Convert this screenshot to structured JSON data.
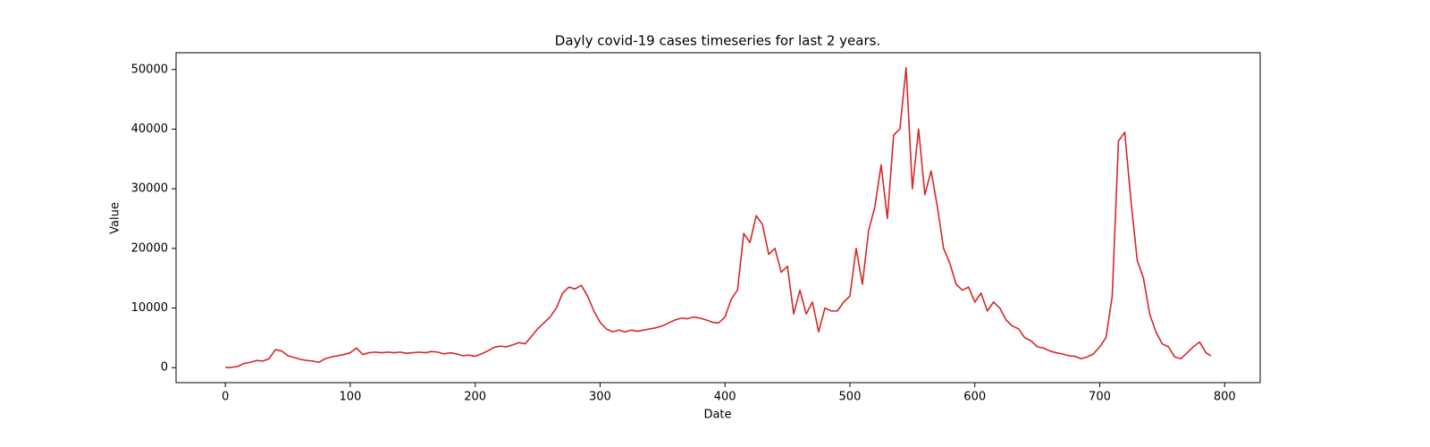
{
  "chart_data": {
    "type": "line",
    "title": "Dayly covid-19 cases timeseries for last 2 years.",
    "x_label": "Date",
    "y_label": "Value",
    "color": "#d62728",
    "x": [
      0,
      5,
      10,
      15,
      20,
      25,
      30,
      35,
      40,
      45,
      50,
      55,
      60,
      65,
      70,
      75,
      80,
      85,
      90,
      95,
      100,
      105,
      110,
      115,
      120,
      125,
      130,
      135,
      140,
      145,
      150,
      155,
      160,
      165,
      170,
      175,
      180,
      185,
      190,
      195,
      200,
      205,
      210,
      215,
      220,
      225,
      230,
      235,
      240,
      245,
      250,
      255,
      260,
      265,
      270,
      275,
      280,
      285,
      290,
      295,
      300,
      305,
      310,
      315,
      320,
      325,
      330,
      335,
      340,
      345,
      350,
      355,
      360,
      365,
      370,
      375,
      380,
      385,
      390,
      395,
      400,
      405,
      410,
      415,
      420,
      425,
      430,
      435,
      440,
      445,
      450,
      455,
      460,
      465,
      470,
      475,
      480,
      485,
      490,
      495,
      500,
      505,
      510,
      515,
      520,
      525,
      530,
      535,
      540,
      545,
      550,
      555,
      560,
      565,
      570,
      575,
      580,
      585,
      590,
      595,
      600,
      605,
      610,
      615,
      620,
      625,
      630,
      635,
      640,
      645,
      650,
      655,
      660,
      665,
      670,
      675,
      680,
      685,
      690,
      695,
      700,
      705,
      710,
      715,
      720,
      725,
      730,
      735,
      740,
      745,
      750,
      755,
      760,
      765,
      770,
      775,
      780,
      785,
      789
    ],
    "values": [
      0,
      50,
      200,
      700,
      900,
      1200,
      1100,
      1500,
      3000,
      2800,
      2000,
      1700,
      1400,
      1200,
      1100,
      900,
      1500,
      1800,
      2000,
      2200,
      2500,
      3300,
      2200,
      2500,
      2600,
      2500,
      2600,
      2500,
      2600,
      2400,
      2500,
      2600,
      2500,
      2700,
      2600,
      2300,
      2500,
      2300,
      2000,
      2100,
      1900,
      2300,
      2800,
      3400,
      3600,
      3500,
      3800,
      4200,
      4000,
      5200,
      6500,
      7500,
      8500,
      10000,
      12500,
      13500,
      13200,
      13800,
      12000,
      9500,
      7600,
      6500,
      6000,
      6300,
      6000,
      6300,
      6100,
      6300,
      6500,
      6700,
      7000,
      7500,
      8000,
      8300,
      8200,
      8500,
      8300,
      8000,
      7600,
      7500,
      8500,
      11500,
      13000,
      22500,
      21000,
      25500,
      24000,
      19000,
      20000,
      16000,
      17000,
      9000,
      13000,
      9000,
      11000,
      6000,
      10000,
      9500,
      9500,
      11000,
      12000,
      20000,
      14000,
      23000,
      27000,
      34000,
      25000,
      39000,
      40000,
      50300,
      30000,
      40000,
      29000,
      33000,
      27000,
      20000,
      17500,
      14000,
      13000,
      13500,
      11000,
      12500,
      9500,
      11000,
      10000,
      8000,
      7000,
      6500,
      5000,
      4500,
      3500,
      3300,
      2800,
      2500,
      2300,
      2000,
      1900,
      1500,
      1800,
      2300,
      3500,
      5000,
      12000,
      38000,
      39500,
      28000,
      18000,
      15000,
      9000,
      6000,
      4000,
      3500,
      1800,
      1500,
      2500,
      3500,
      4300,
      2500,
      2000
    ],
    "xlim": [
      -39.45,
      828.45
    ],
    "ylim": [
      -2515,
      52815
    ],
    "xticks": [
      0,
      100,
      200,
      300,
      400,
      500,
      600,
      700,
      800
    ],
    "yticks": [
      0,
      10000,
      20000,
      30000,
      40000,
      50000
    ]
  }
}
